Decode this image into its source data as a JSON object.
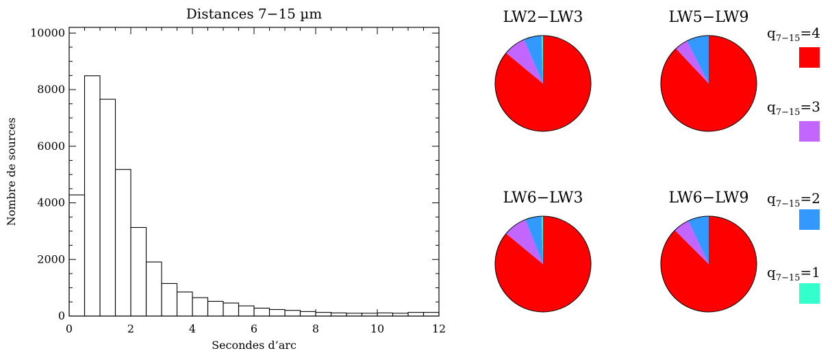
{
  "chart_data": [
    {
      "type": "bar",
      "title": "Distances 7−15 µm",
      "xlabel": "Secondes d’arc",
      "ylabel": "Nombre de sources",
      "xlim": [
        0,
        12
      ],
      "ylim": [
        0,
        10200
      ],
      "xticks": [
        0,
        2,
        4,
        6,
        8,
        10,
        12
      ],
      "xtick_labels": [
        "0",
        "2",
        "4",
        "6",
        "8",
        "10",
        "12"
      ],
      "yticks": [
        0,
        2000,
        4000,
        6000,
        8000,
        10000
      ],
      "ytick_labels": [
        "0",
        "2000",
        "4000",
        "6000",
        "8000",
        "10000"
      ],
      "bin_width": 0.5,
      "bin_edges_start": [
        0,
        0.5,
        1,
        1.5,
        2,
        2.5,
        3,
        3.5,
        4,
        4.5,
        5,
        5.5,
        6,
        6.5,
        7,
        7.5,
        8,
        8.5,
        9,
        9.5,
        10,
        10.5,
        11,
        11.5
      ],
      "values": [
        4280,
        8490,
        7660,
        5180,
        3130,
        1910,
        1150,
        850,
        650,
        520,
        460,
        360,
        280,
        230,
        200,
        160,
        130,
        110,
        100,
        100,
        110,
        100,
        130,
        130
      ]
    },
    {
      "type": "pie",
      "title": "LW2−LW3",
      "categories": [
        "q=4",
        "q=3",
        "q=2",
        "q=1"
      ],
      "values": [
        86.0,
        7.5,
        6.0,
        0.5
      ]
    },
    {
      "type": "pie",
      "title": "LW5−LW9",
      "categories": [
        "q=4",
        "q=3",
        "q=2",
        "q=1"
      ],
      "values": [
        88.0,
        4.5,
        7.5,
        0.0
      ]
    },
    {
      "type": "pie",
      "title": "LW6−LW3",
      "categories": [
        "q=4",
        "q=3",
        "q=2",
        "q=1"
      ],
      "values": [
        86.0,
        8.0,
        5.5,
        0.5
      ]
    },
    {
      "type": "pie",
      "title": "LW6−LW9",
      "categories": [
        "q=4",
        "q=3",
        "q=2",
        "q=1"
      ],
      "values": [
        87.5,
        5.5,
        7.0,
        0.0
      ]
    }
  ],
  "legend": {
    "items": [
      {
        "prefix": "q",
        "subscript": "7−15",
        "suffix": "=4",
        "color": "#ff0000"
      },
      {
        "prefix": "q",
        "subscript": "7−15",
        "suffix": "=3",
        "color": "#c266ff"
      },
      {
        "prefix": "q",
        "subscript": "7−15",
        "suffix": "=2",
        "color": "#3399ff"
      },
      {
        "prefix": "q",
        "subscript": "7−15",
        "suffix": "=1",
        "color": "#33ffcc"
      }
    ]
  }
}
